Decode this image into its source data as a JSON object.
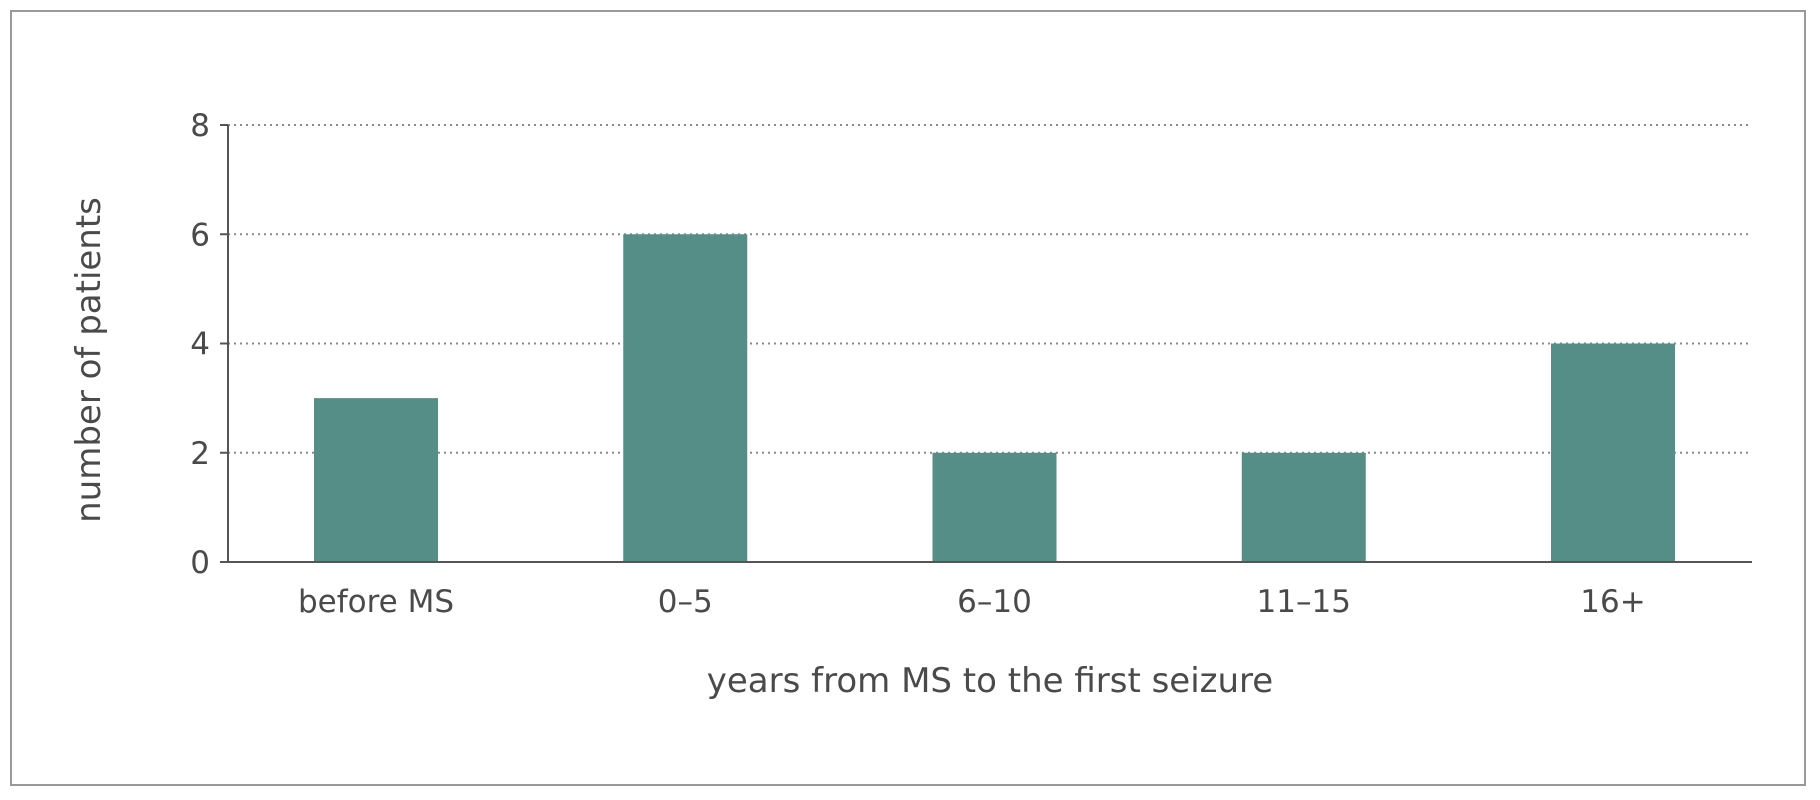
{
  "chart_data": {
    "type": "bar",
    "categories": [
      "before MS",
      "0–5",
      "6–10",
      "11–15",
      "16+"
    ],
    "values": [
      3,
      6,
      2,
      2,
      4
    ],
    "title": "",
    "xlabel": "years from MS to the first seizure",
    "ylabel": "number of patients",
    "ylim": [
      0,
      8
    ],
    "yticks": [
      0,
      2,
      4,
      6,
      8
    ],
    "grid": true,
    "grid_style": "dotted horizontal",
    "bar_color": "#558e86",
    "axis_color": "#555555",
    "grid_color": "#8a8a8a",
    "frame_color": "#9a9a9a"
  }
}
